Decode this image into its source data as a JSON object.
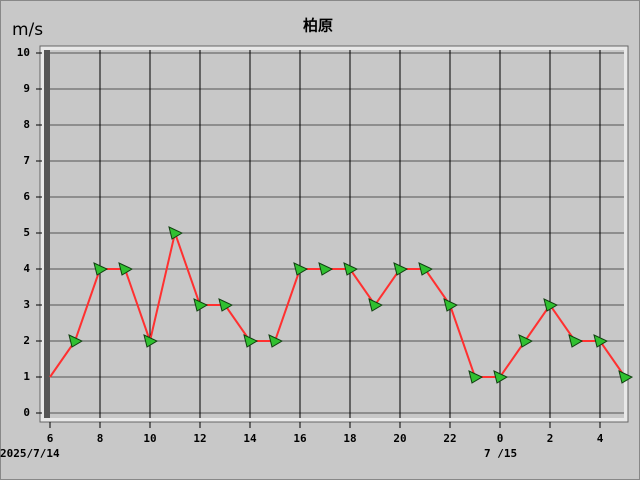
{
  "chart_data": {
    "type": "line",
    "title": "柏原",
    "y_label": "m/s",
    "categories": [
      "6",
      null,
      "8",
      null,
      "10",
      null,
      "12",
      null,
      "14",
      null,
      "16",
      null,
      "18",
      null,
      "20",
      null,
      "22",
      null,
      "0",
      null,
      "2",
      null,
      "4",
      null
    ],
    "series": [
      {
        "color": "#ff3030",
        "values": [
          1,
          2,
          4,
          4,
          2,
          5,
          3,
          3,
          2,
          2,
          4,
          4,
          4,
          3,
          4,
          4,
          3,
          1,
          1,
          2,
          3,
          2,
          2,
          1
        ]
      }
    ],
    "date_labels": [
      "2025/7/14",
      "7 /15"
    ],
    "ylim": [
      0,
      10
    ],
    "yticks": [
      0,
      1,
      2,
      3,
      4,
      5,
      6,
      7,
      8,
      9,
      10
    ],
    "grid": true
  }
}
